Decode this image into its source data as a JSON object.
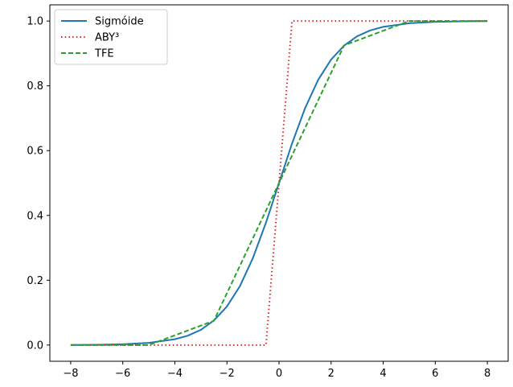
{
  "chart_data": {
    "type": "line",
    "title": "",
    "xlabel": "",
    "ylabel": "",
    "xlim": [
      -8.8,
      8.8
    ],
    "ylim": [
      -0.05,
      1.05
    ],
    "x_ticks": [
      -8,
      -6,
      -4,
      -2,
      0,
      2,
      4,
      6,
      8
    ],
    "x_tick_labels": [
      "−8",
      "−6",
      "−4",
      "−2",
      "0",
      "2",
      "4",
      "6",
      "8"
    ],
    "y_ticks": [
      0.0,
      0.2,
      0.4,
      0.6,
      0.8,
      1.0
    ],
    "y_tick_labels": [
      "0.0",
      "0.2",
      "0.4",
      "0.6",
      "0.8",
      "1.0"
    ],
    "grid": false,
    "legend_position": "top-left",
    "series": [
      {
        "name": "Sigmóide",
        "color": "#1f77b4",
        "style": "solid",
        "x": [
          -8,
          -7,
          -6,
          -5,
          -4,
          -3.5,
          -3,
          -2.5,
          -2,
          -1.5,
          -1,
          -0.5,
          0,
          0.5,
          1,
          1.5,
          2,
          2.5,
          3,
          3.5,
          4,
          5,
          6,
          7,
          8
        ],
        "y": [
          0.0003,
          0.0009,
          0.0025,
          0.0067,
          0.018,
          0.029,
          0.047,
          0.076,
          0.119,
          0.182,
          0.269,
          0.378,
          0.5,
          0.622,
          0.731,
          0.818,
          0.881,
          0.924,
          0.953,
          0.971,
          0.982,
          0.9933,
          0.9975,
          0.9991,
          0.9997
        ]
      },
      {
        "name": "ABY³",
        "color": "#d62728",
        "style": "dotted",
        "x": [
          -8,
          -0.5,
          0.5,
          8
        ],
        "y": [
          0,
          0,
          1,
          1
        ]
      },
      {
        "name": "TFE",
        "color": "#2ca02c",
        "style": "dashed",
        "x": [
          -8,
          -5,
          -2.5,
          2.5,
          5,
          8
        ],
        "y": [
          0,
          0,
          0.075,
          0.925,
          1,
          1
        ]
      }
    ]
  }
}
